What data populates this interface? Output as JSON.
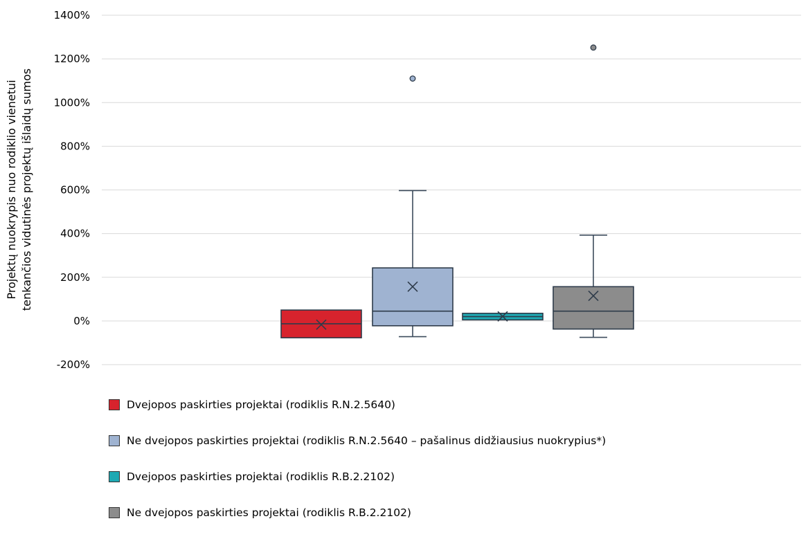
{
  "chart_data": {
    "type": "box",
    "ylabel_lines": [
      "Projektų nuokrypis nuo rodiklio vienetui",
      "tenkančios vidutinės projektų išlaidų sumos"
    ],
    "ylim": [
      -200,
      1400
    ],
    "y_ticks": [
      "-200%",
      "0%",
      "200%",
      "400%",
      "600%",
      "800%",
      "1000%",
      "1200%",
      "1400%"
    ],
    "y_tick_values": [
      -200,
      0,
      200,
      400,
      600,
      800,
      1000,
      1200,
      1400
    ],
    "gridlines": true,
    "legend_position": "bottom",
    "series": [
      {
        "name": "Dvejopos paskirties projektai (rodiklis R.N.2.5640)",
        "color": "#d7232d",
        "min": -77,
        "q1": -77,
        "median": -13,
        "q3": 50,
        "max": 50,
        "mean": -17,
        "outliers": []
      },
      {
        "name": "Ne dvejopos paskirties projektai (rodiklis R.N.2.5640 – pašalinus didžiausius nuokrypius*)",
        "color": "#9fb3d1",
        "min": -72,
        "q1": -22,
        "median": 45,
        "q3": 243,
        "max": 597,
        "mean": 157,
        "outliers": [
          1110
        ]
      },
      {
        "name": "Dvejopos paskirties projektai (rodiklis R.B.2.2102)",
        "color": "#1ea9b3",
        "min": 5,
        "q1": 5,
        "median": 20,
        "q3": 35,
        "max": 35,
        "mean": 21,
        "outliers": []
      },
      {
        "name": "Ne dvejopos paskirties projektai (rodiklis R.B.2.2102)",
        "color": "#8c8c8c",
        "min": -75,
        "q1": -37,
        "median": 45,
        "q3": 157,
        "max": 393,
        "mean": 115,
        "outliers": [
          1252
        ]
      }
    ]
  }
}
